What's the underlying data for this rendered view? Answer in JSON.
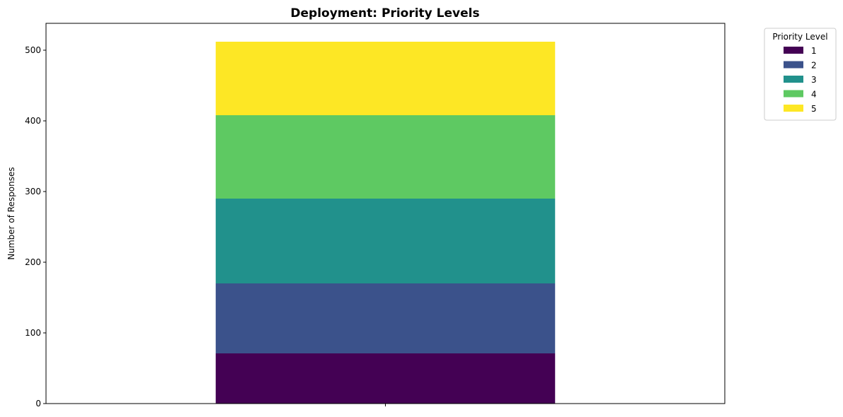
{
  "chart_data": {
    "type": "bar",
    "stacked": true,
    "title": "Deployment: Priority Levels",
    "xlabel": "",
    "ylabel": "Number of Responses",
    "ylim": [
      0,
      538
    ],
    "yticks": [
      0,
      100,
      200,
      300,
      400,
      500
    ],
    "categories": [
      ""
    ],
    "series": [
      {
        "name": "1",
        "values": [
          71
        ],
        "color": "#440154"
      },
      {
        "name": "2",
        "values": [
          99
        ],
        "color": "#3b528b"
      },
      {
        "name": "3",
        "values": [
          120
        ],
        "color": "#21918c"
      },
      {
        "name": "4",
        "values": [
          118
        ],
        "color": "#5ec962"
      },
      {
        "name": "5",
        "values": [
          104
        ],
        "color": "#fde725"
      }
    ],
    "legend": {
      "title": "Priority Level",
      "placement": "outside-top-right"
    },
    "grid": false
  }
}
